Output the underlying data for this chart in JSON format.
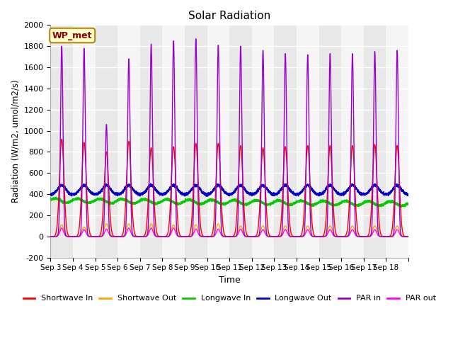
{
  "title": "Solar Radiation",
  "ylabel": "Radiation (W/m2, umol/m2/s)",
  "xlabel": "Time",
  "ylim": [
    -200,
    2000
  ],
  "annotation": "WP_met",
  "legend_labels": [
    "Shortwave In",
    "Shortwave Out",
    "Longwave In",
    "Longwave Out",
    "PAR in",
    "PAR out"
  ],
  "legend_colors": [
    "#ff0000",
    "#ffa500",
    "#00cc00",
    "#0000cc",
    "#9900cc",
    "#ff00ff"
  ],
  "bg_color": "#ffffff",
  "plot_bg_color": "#ffffff",
  "stripe_color_even": "#e8e8e8",
  "stripe_color_odd": "#f8f8f8",
  "n_days": 16,
  "shortwave_in_peaks": [
    920,
    890,
    800,
    900,
    840,
    850,
    880,
    880,
    860,
    840,
    850,
    860,
    860,
    860,
    870,
    860
  ],
  "shortwave_out_peaks": [
    110,
    90,
    120,
    120,
    120,
    110,
    110,
    120,
    100,
    100,
    100,
    100,
    100,
    100,
    100,
    100
  ],
  "longwave_in_base": 340,
  "longwave_out_base": 395,
  "par_in_peaks": [
    1800,
    1780,
    1060,
    1680,
    1820,
    1850,
    1870,
    1810,
    1800,
    1760,
    1730,
    1720,
    1730,
    1730,
    1750,
    1760
  ],
  "par_out_peaks": [
    80,
    65,
    70,
    80,
    80,
    80,
    70,
    70,
    70,
    65,
    65,
    65,
    65,
    65,
    65,
    65
  ],
  "tick_labels": [
    "Sep 3",
    "Sep 4",
    "Sep 5",
    "Sep 6",
    "Sep 7",
    "Sep 8",
    "Sep 9",
    "Sep 10",
    "Sep 11",
    "Sep 12",
    "Sep 13",
    "Sep 14",
    "Sep 15",
    "Sep 16",
    "Sep 17",
    "Sep 18"
  ],
  "grid_color": "#cccccc",
  "yticks": [
    -200,
    0,
    200,
    400,
    600,
    800,
    1000,
    1200,
    1400,
    1600,
    1800,
    2000
  ]
}
